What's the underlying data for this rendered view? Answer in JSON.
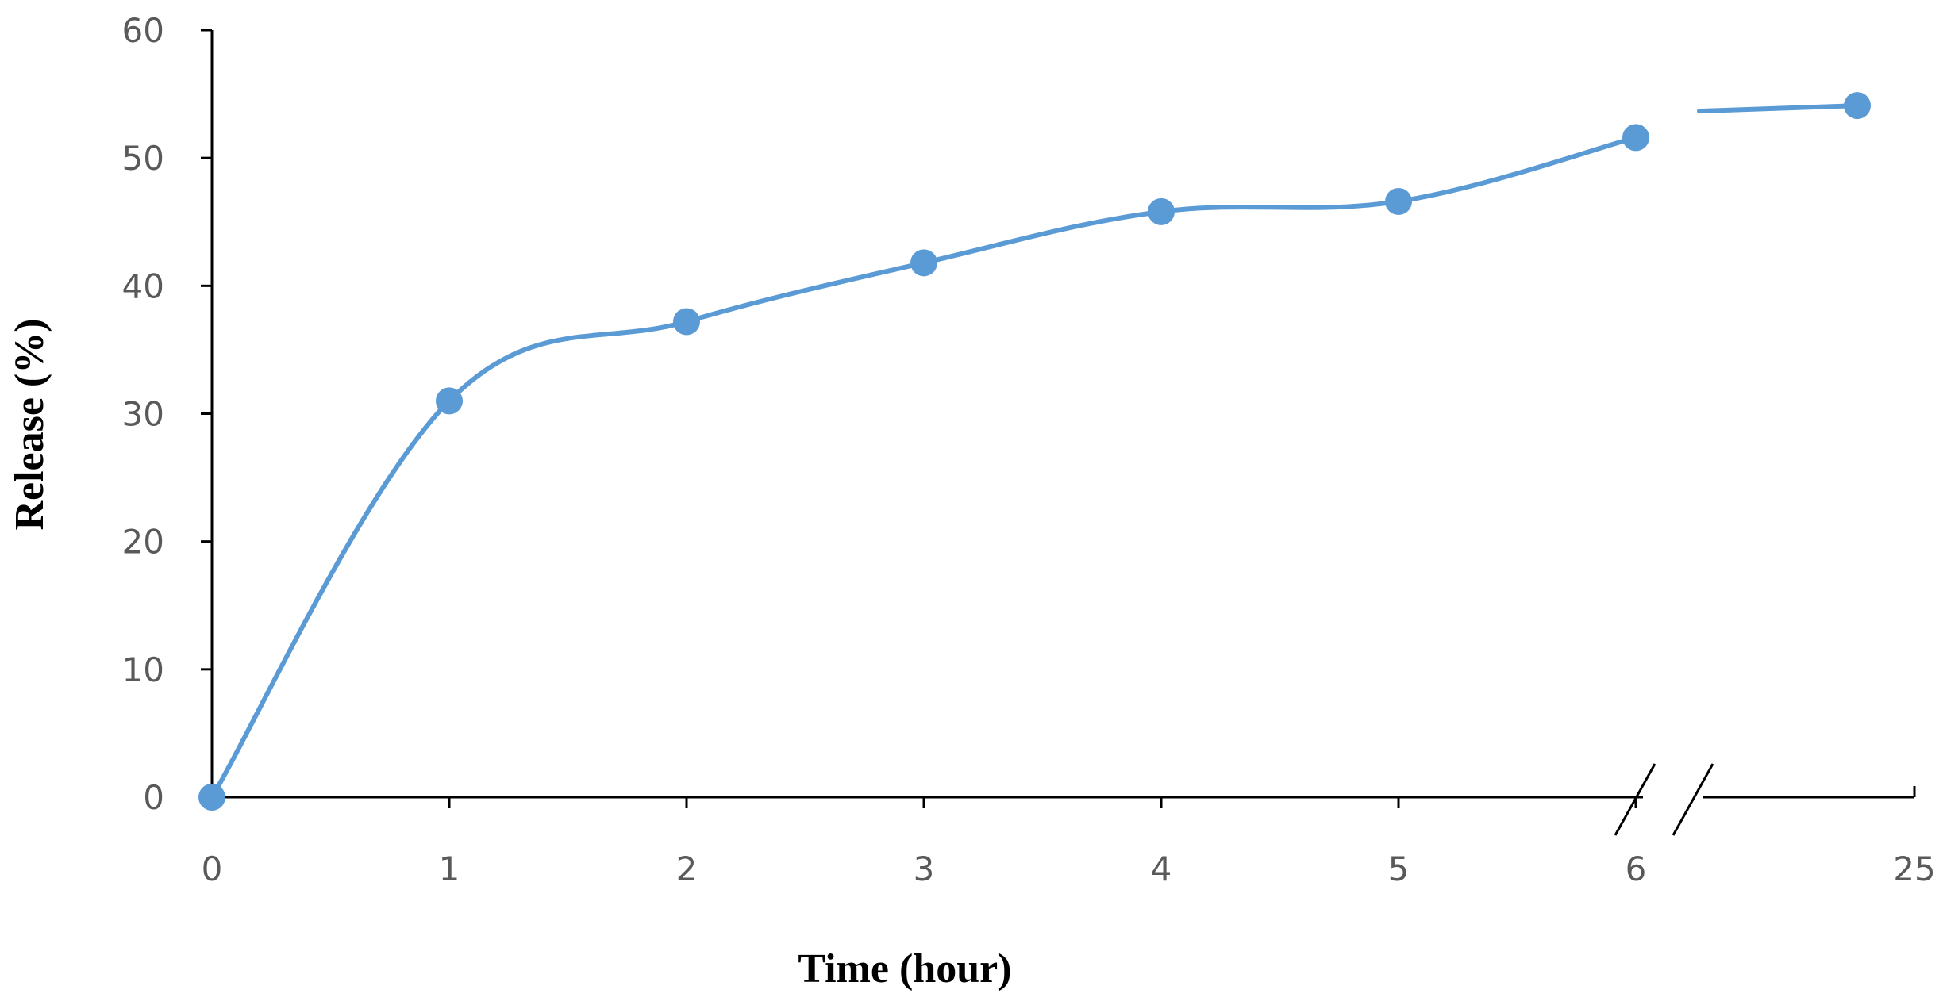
{
  "colors": {
    "series": "#5B9BD5",
    "axis": "#000000",
    "tick_text": "#595959",
    "background": "#FFFFFF"
  },
  "chart_data": {
    "type": "line",
    "title": "",
    "xlabel": "Time (hour)",
    "ylabel": "Release (%)",
    "x_ticks": [
      "0",
      "1",
      "2",
      "3",
      "4",
      "5",
      "6",
      "25"
    ],
    "y_ticks": [
      "0",
      "10",
      "20",
      "30",
      "40",
      "50",
      "60"
    ],
    "ylim": [
      0,
      60
    ],
    "x_axis_break": {
      "after": 6,
      "resume": 25
    },
    "grid": false,
    "legend": "none",
    "smooth": true,
    "series": [
      {
        "x": [
          0,
          1,
          2,
          3,
          4,
          5,
          6,
          25
        ],
        "y": [
          0,
          31,
          37.2,
          41.8,
          45.8,
          46.6,
          51.6,
          54.1
        ]
      }
    ]
  }
}
